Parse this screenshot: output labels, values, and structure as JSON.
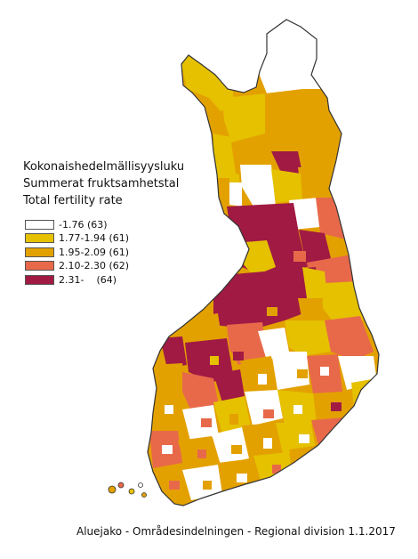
{
  "title": {
    "lines": [
      "Kokonaishedelmällisyysluku",
      "Summerat fruktsamhetstal",
      "Total fertility rate"
    ]
  },
  "legend": {
    "items": [
      {
        "label": "-1.76 (63)",
        "color": "#ffffff"
      },
      {
        "label": "1.77-1.94 (61)",
        "color": "#e5c100"
      },
      {
        "label": "1.95-2.09 (61)",
        "color": "#e3a100"
      },
      {
        "label": "2.10-2.30 (62)",
        "color": "#e8694a"
      },
      {
        "label": "2.31-    (64)",
        "color": "#a01a44"
      }
    ]
  },
  "caption": "Aluejako - Områdesindelningen - Regional division 1.1.2017",
  "colors": {
    "border": "#333333",
    "background": "#ffffff"
  }
}
